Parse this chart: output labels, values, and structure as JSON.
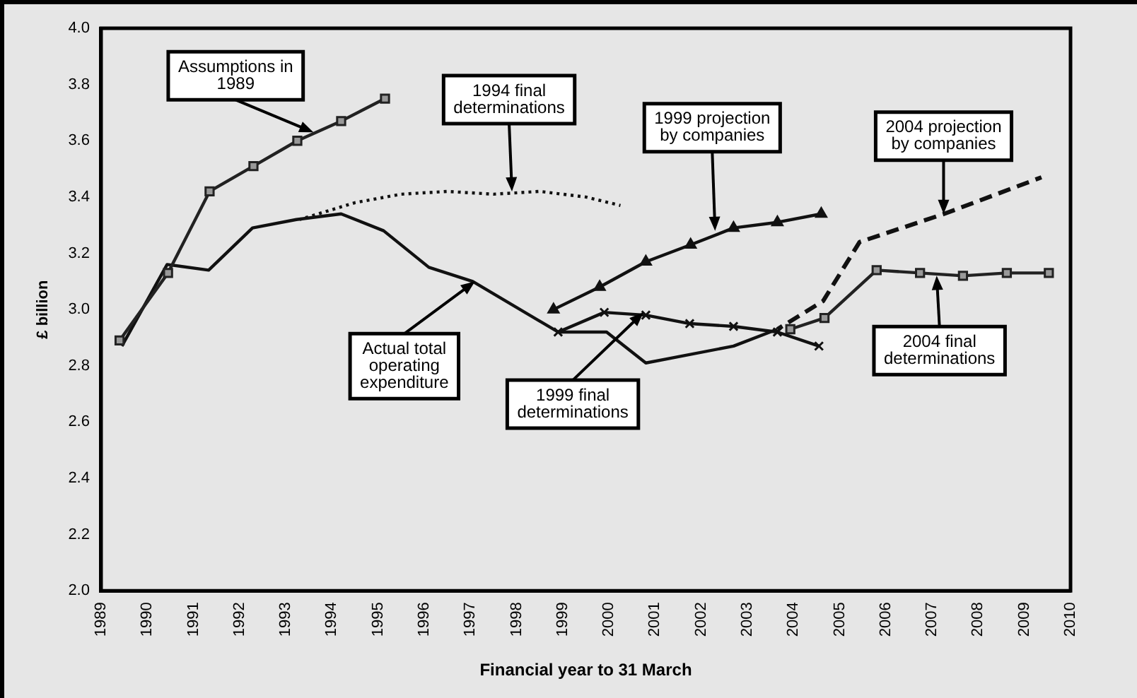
{
  "chart_data": {
    "type": "line",
    "xlabel": "Financial year to 31 March",
    "ylabel": "£ billion",
    "xlim": [
      1989,
      2010
    ],
    "xticks": [
      1989,
      1990,
      1991,
      1992,
      1993,
      1994,
      1995,
      1996,
      1997,
      1998,
      1999,
      2000,
      2001,
      2002,
      2003,
      2004,
      2005,
      2006,
      2007,
      2008,
      2009,
      2010
    ],
    "ylim": [
      2.0,
      4.0
    ],
    "yticks": [
      {
        "value": 2.0,
        "label": "2.0"
      },
      {
        "value": 2.2,
        "label": "2.2"
      },
      {
        "value": 2.4,
        "label": "2.4"
      },
      {
        "value": 2.6,
        "label": "2.6"
      },
      {
        "value": 2.8,
        "label": "2.8"
      },
      {
        "value": 3.0,
        "label": "3.0"
      },
      {
        "value": 3.2,
        "label": "3.2"
      },
      {
        "value": 3.4,
        "label": "3.4"
      },
      {
        "value": 3.6,
        "label": "3.6"
      },
      {
        "value": 3.8,
        "label": "3.8"
      },
      {
        "value": 4.0,
        "label": "4.0"
      }
    ],
    "grid": false,
    "legend": false,
    "series": [
      {
        "color": "#222222",
        "marker": "square",
        "line_style": "solid",
        "x": [
          1989.4,
          1990.45,
          1991.35,
          1992.3,
          1993.25,
          1994.2,
          1995.15
        ],
        "values": [
          2.89,
          3.13,
          3.42,
          3.51,
          3.6,
          3.67,
          3.75
        ]
      },
      {
        "color": "#111111",
        "marker": "none",
        "line_style": "solid",
        "x": [
          1989.45,
          1990.43,
          1991.33,
          1992.28,
          1993.23,
          1994.2,
          1995.12,
          1996.1,
          1997.05,
          1998.9,
          1999.95,
          2000.8,
          2002.7,
          2003.65
        ],
        "values": [
          2.87,
          3.16,
          3.14,
          3.29,
          3.32,
          3.34,
          3.28,
          3.15,
          3.1,
          2.92,
          2.92,
          2.81,
          2.87,
          2.93
        ]
      },
      {
        "color": "#111111",
        "marker": "none",
        "line_style": "dotted",
        "x": [
          1993.3,
          1994.5,
          1995.5,
          1996.5,
          1997.5,
          1998.5,
          1999.5,
          2000.25
        ],
        "values": [
          3.32,
          3.38,
          3.41,
          3.42,
          3.41,
          3.42,
          3.4,
          3.37
        ]
      },
      {
        "color": "#111111",
        "marker": "triangle",
        "line_style": "solid",
        "x": [
          1998.8,
          1999.8,
          2000.8,
          2001.77,
          2002.7,
          2003.65,
          2004.6
        ],
        "values": [
          3.0,
          3.08,
          3.17,
          3.23,
          3.29,
          3.31,
          3.34
        ]
      },
      {
        "color": "#111111",
        "marker": "cross",
        "line_style": "solid",
        "x": [
          1998.9,
          1999.9,
          2000.8,
          2001.75,
          2002.7,
          2003.65,
          2004.55
        ],
        "values": [
          2.92,
          2.99,
          2.98,
          2.95,
          2.94,
          2.92,
          2.87
        ]
      },
      {
        "color": "#111111",
        "marker": "none",
        "line_style": "dashed",
        "x": [
          2003.65,
          2004.64,
          2005.43,
          2007.26,
          2009.37
        ],
        "values": [
          2.93,
          3.03,
          3.24,
          3.34,
          3.47
        ]
      },
      {
        "color": "#222222",
        "marker": "square",
        "line_style": "solid",
        "x": [
          2003.93,
          2004.67,
          2005.8,
          2006.74,
          2007.67,
          2008.62,
          2009.53
        ],
        "values": [
          2.93,
          2.97,
          3.14,
          3.13,
          3.12,
          3.13,
          3.13
        ]
      }
    ],
    "annotations": [
      {
        "text": "Assumptions in\n1989",
        "x": 1993.6,
        "y": 3.63
      },
      {
        "text": "1994 final\ndeterminations",
        "x": 1997.9,
        "y": 3.42
      },
      {
        "text": "1999 projection\nby companies",
        "x": 2002.3,
        "y": 3.28
      },
      {
        "text": "2004 projection\nby companies",
        "x": 2007.25,
        "y": 3.34
      },
      {
        "text": "Actual total\noperating\nexpenditure",
        "x": 1997.1,
        "y": 3.1
      },
      {
        "text": "1999 final\ndeterminations",
        "x": 2000.75,
        "y": 2.99
      },
      {
        "text": "2004 final\ndeterminations",
        "x": 2007.1,
        "y": 3.12
      }
    ]
  }
}
